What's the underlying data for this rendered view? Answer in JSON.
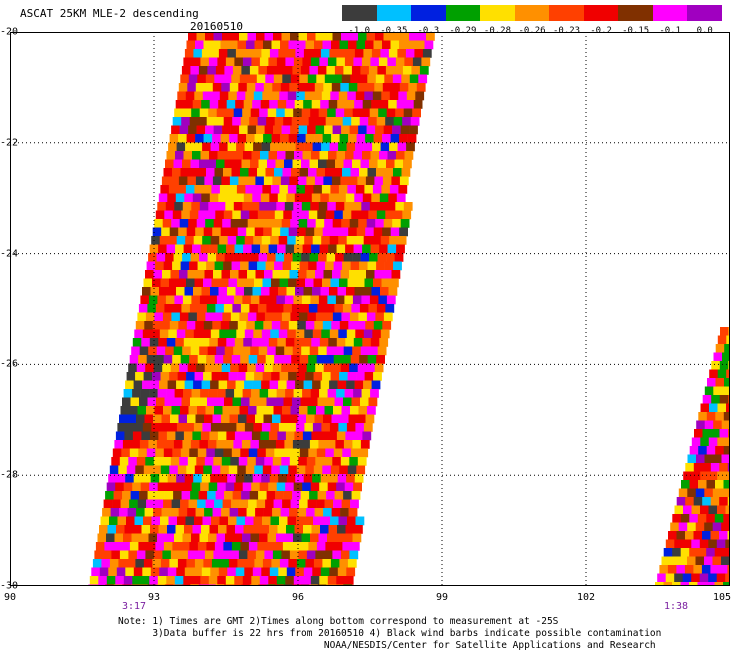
{
  "header": {
    "title": "ASCAT 25KM MLE-2 descending",
    "date": "20160510"
  },
  "colorbar": {
    "colors": [
      "#3c3c3c",
      "#00c0ff",
      "#0020e0",
      "#00a000",
      "#ffe000",
      "#ff9000",
      "#ff4000",
      "#f00000",
      "#803000",
      "#ff00ff",
      "#a000c0"
    ],
    "labels": [
      "-1.0",
      "-0.35",
      "-0.3",
      "-0.29",
      "-0.28",
      "-0.26",
      "-0.23",
      "-0.2",
      "-0.15",
      "-0.1",
      "0.0"
    ]
  },
  "axes": {
    "lon_ticks": [
      "90",
      "93",
      "96",
      "99",
      "102",
      "105"
    ],
    "lat_ticks": [
      "-20",
      "-22",
      "-24",
      "-26",
      "-28",
      "-30"
    ],
    "grid": "dotted"
  },
  "times": {
    "left": "3:17",
    "right": "1:38"
  },
  "notes": {
    "line1": "Note: 1) Times are GMT 2)Times along bottom correspond to measurement at -25S",
    "line2": "      3)Data buffer is 22 hrs from 20160510 4) Black wind barbs indicate possible contamination",
    "line3": "                                    NOAA/NESDIS/Center for Satellite Applications and Research"
  }
}
